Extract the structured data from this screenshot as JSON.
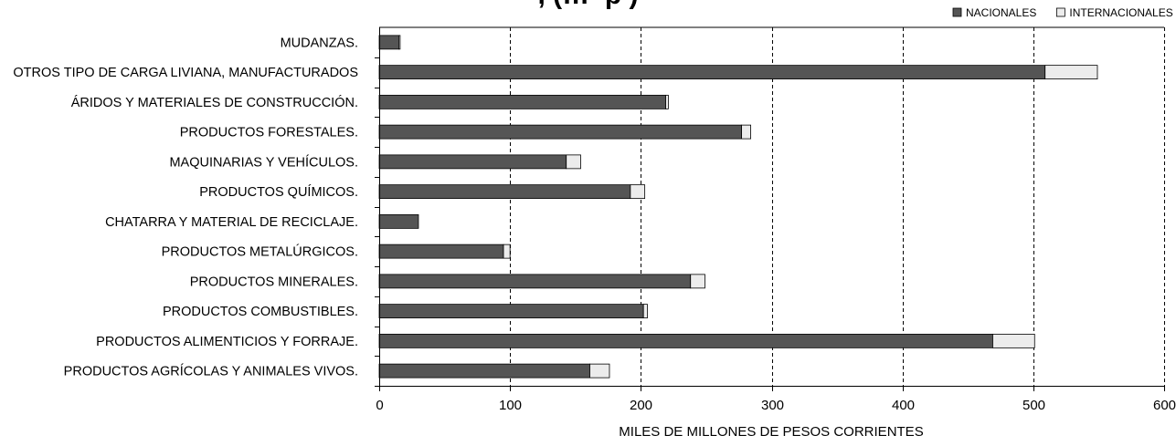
{
  "chart_data": {
    "type": "bar",
    "orientation": "horizontal",
    "stacked": true,
    "title_partial": ", (… ­ p )",
    "categories": [
      "MUDANZAS.",
      "OTROS TIPO DE CARGA LIVIANA, MANUFACTURADOS",
      "ÁRIDOS Y MATERIALES DE CONSTRUCCIÓN.",
      "PRODUCTOS FORESTALES.",
      "MAQUINARIAS Y VEHÍCULOS.",
      "PRODUCTOS QUÍMICOS.",
      "CHATARRA Y MATERIAL DE RECICLAJE.",
      "PRODUCTOS METALÚRGICOS.",
      "PRODUCTOS MINERALES.",
      "PRODUCTOS COMBUSTIBLES.",
      "PRODUCTOS ALIMENTICIOS Y FORRAJE.",
      "PRODUCTOS AGRÍCOLAS Y ANIMALES VIVOS."
    ],
    "series": [
      {
        "name": "NACIONALES",
        "color": "#555555",
        "values": [
          15,
          509,
          219,
          277,
          143,
          192,
          30,
          95,
          238,
          202,
          469,
          161
        ]
      },
      {
        "name": "INTERNACIONALES",
        "color": "#ececec",
        "values": [
          1,
          40,
          2,
          7,
          11,
          11,
          0,
          5,
          11,
          3,
          32,
          15
        ]
      }
    ],
    "xlabel": "MILES DE MILLONES DE PESOS CORRIENTES",
    "ylabel": "",
    "xlim": [
      0,
      600
    ],
    "xticks": [
      "0",
      "100",
      "200",
      "300",
      "400",
      "500",
      "600"
    ],
    "grid": "vertical dashed",
    "legend": "top-right"
  }
}
